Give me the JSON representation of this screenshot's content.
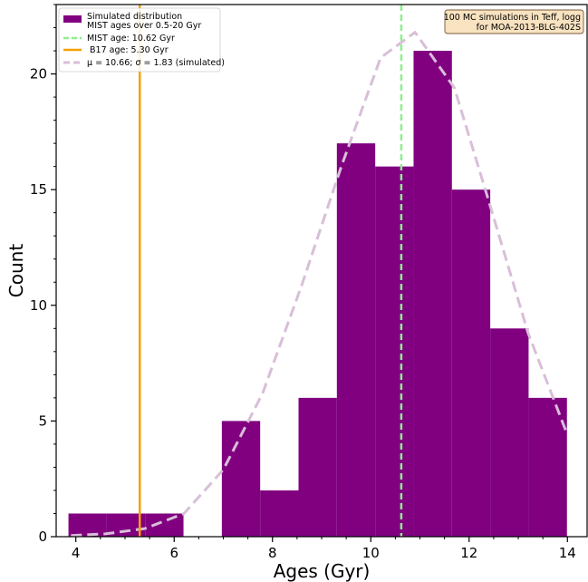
{
  "chart_data": {
    "type": "bar",
    "xlabel": "Ages (Gyr)",
    "ylabel": "Count",
    "xlim": [
      3.6,
      14.4
    ],
    "ylim": [
      0,
      23
    ],
    "x_ticks": [
      4,
      6,
      8,
      10,
      12,
      14
    ],
    "y_ticks": [
      0,
      5,
      10,
      15,
      20
    ],
    "histogram": {
      "name": "Simulated distribution",
      "name_line2": "MIST ages over 0.5-20 Gyr",
      "color": "#800080",
      "bins": [
        {
          "x0": 3.85,
          "x1": 4.63,
          "count": 1
        },
        {
          "x0": 4.63,
          "x1": 5.41,
          "count": 1
        },
        {
          "x0": 5.41,
          "x1": 6.19,
          "count": 1
        },
        {
          "x0": 6.19,
          "x1": 6.97,
          "count": 0
        },
        {
          "x0": 6.97,
          "x1": 7.75,
          "count": 5
        },
        {
          "x0": 7.75,
          "x1": 8.53,
          "count": 2
        },
        {
          "x0": 8.53,
          "x1": 9.31,
          "count": 6
        },
        {
          "x0": 9.31,
          "x1": 10.09,
          "count": 17
        },
        {
          "x0": 10.09,
          "x1": 10.87,
          "count": 16
        },
        {
          "x0": 10.87,
          "x1": 11.65,
          "count": 21
        },
        {
          "x0": 11.65,
          "x1": 12.43,
          "count": 15
        },
        {
          "x0": 12.43,
          "x1": 13.21,
          "count": 9
        },
        {
          "x0": 13.21,
          "x1": 13.99,
          "count": 6
        }
      ]
    },
    "vlines": [
      {
        "name": "MIST age: 10.62 Gyr",
        "x": 10.62,
        "color": "#90ee90",
        "dashed": true
      },
      {
        "name": " B17 age: 5.30 Gyr",
        "x": 5.3,
        "color": "#f5a000",
        "dashed": false
      }
    ],
    "fit_curve": {
      "name": "$\\mu = 10.66$; $\\sigma = 1.83$ (simulated)",
      "name_display": "μ = 10.66; σ = 1.83 (simulated)",
      "color": "#d8bfd8",
      "x": [
        3.9,
        4.6,
        5.4,
        6.2,
        7.0,
        7.8,
        8.6,
        9.4,
        10.2,
        10.9,
        11.7,
        12.4,
        13.2,
        14.0
      ],
      "y": [
        0.05,
        0.12,
        0.35,
        1.0,
        2.9,
        6.2,
        10.9,
        16.0,
        20.7,
        21.8,
        19.4,
        14.5,
        8.8,
        4.4
      ]
    },
    "annotation": {
      "line1": "100 MC simulations in Teff, logg",
      "line2": "for MOA-2013-BLG-402S",
      "position": "top-right"
    },
    "legend_position": "top-left",
    "grid": false
  }
}
